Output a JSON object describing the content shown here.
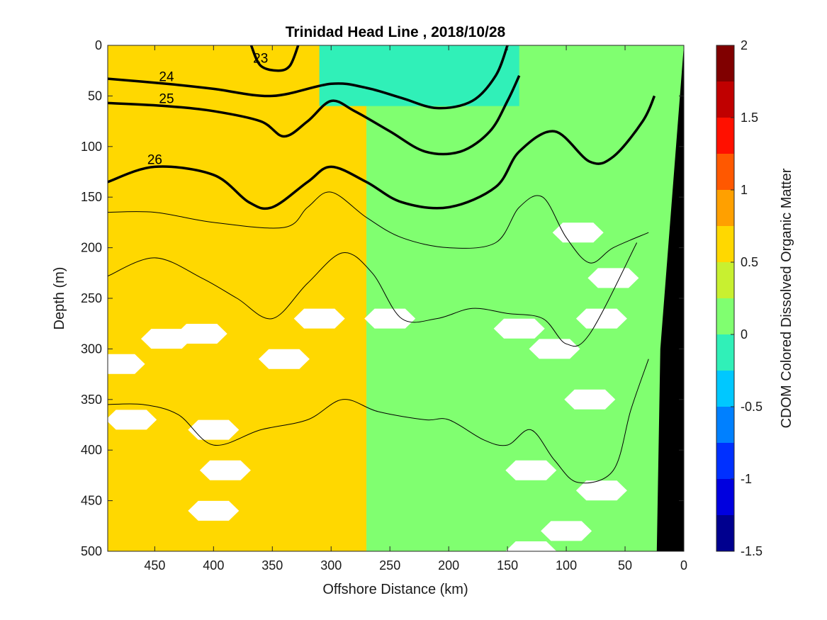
{
  "chart_data": {
    "type": "heatmap",
    "title": "Trinidad Head Line , 2018/10/28",
    "xlabel": "Offshore Distance (km)",
    "ylabel": "Depth (m)",
    "colorbar_label": "CDOM Colored Dissolved Organic Matter",
    "xlim": [
      490,
      0
    ],
    "ylim": [
      0,
      500
    ],
    "x_ticks": [
      450,
      400,
      350,
      300,
      250,
      200,
      150,
      100,
      50,
      0
    ],
    "y_ticks": [
      0,
      50,
      100,
      150,
      200,
      250,
      300,
      350,
      400,
      450,
      500
    ],
    "color_scale": {
      "min": -1.5,
      "max": 2,
      "step": 0.25,
      "ticks": [
        2,
        1.5,
        1,
        0.5,
        0,
        -0.5,
        -1,
        -1.5
      ],
      "colors": [
        "#00008f",
        "#0000df",
        "#0030ff",
        "#0080ff",
        "#00c8ff",
        "#30f0b8",
        "#80ff70",
        "#c8f030",
        "#ffd800",
        "#ffa000",
        "#ff5800",
        "#ff1000",
        "#c00000",
        "#800000"
      ]
    },
    "background_field": [
      {
        "x_range": [
          490,
          270
        ],
        "depth_range": [
          0,
          500
        ],
        "value": 0.6
      },
      {
        "x_range": [
          270,
          0
        ],
        "depth_range": [
          0,
          500
        ],
        "value": 0.15
      },
      {
        "x_range": [
          310,
          140
        ],
        "depth_range": [
          0,
          60
        ],
        "value": -0.1
      }
    ],
    "density_contours": [
      {
        "label": "23",
        "labeled": true,
        "points": [
          [
            368,
            0
          ],
          [
            360,
            20
          ],
          [
            345,
            25
          ],
          [
            335,
            20
          ],
          [
            328,
            0
          ]
        ]
      },
      {
        "label": "24",
        "labeled": true,
        "points": [
          [
            490,
            33
          ],
          [
            440,
            38
          ],
          [
            400,
            43
          ],
          [
            350,
            50
          ],
          [
            300,
            38
          ],
          [
            270,
            42
          ],
          [
            240,
            52
          ],
          [
            210,
            62
          ],
          [
            180,
            55
          ],
          [
            160,
            30
          ],
          [
            150,
            0
          ]
        ]
      },
      {
        "label": "25",
        "labeled": true,
        "points": [
          [
            490,
            57
          ],
          [
            440,
            60
          ],
          [
            400,
            65
          ],
          [
            360,
            75
          ],
          [
            340,
            90
          ],
          [
            320,
            75
          ],
          [
            300,
            55
          ],
          [
            280,
            65
          ],
          [
            250,
            85
          ],
          [
            220,
            105
          ],
          [
            190,
            105
          ],
          [
            165,
            85
          ],
          [
            150,
            55
          ],
          [
            140,
            30
          ]
        ]
      },
      {
        "label": "26",
        "labeled": true,
        "points": [
          [
            490,
            135
          ],
          [
            450,
            120
          ],
          [
            400,
            128
          ],
          [
            370,
            155
          ],
          [
            350,
            160
          ],
          [
            320,
            135
          ],
          [
            300,
            120
          ],
          [
            270,
            135
          ],
          [
            240,
            155
          ],
          [
            200,
            160
          ],
          [
            160,
            140
          ],
          [
            140,
            105
          ],
          [
            110,
            85
          ],
          [
            80,
            115
          ],
          [
            60,
            110
          ],
          [
            35,
            75
          ],
          [
            25,
            50
          ]
        ]
      },
      {
        "label": "",
        "labeled": false,
        "points": [
          [
            490,
            165
          ],
          [
            450,
            165
          ],
          [
            400,
            175
          ],
          [
            340,
            180
          ],
          [
            320,
            160
          ],
          [
            300,
            145
          ],
          [
            270,
            170
          ],
          [
            240,
            190
          ],
          [
            200,
            200
          ],
          [
            160,
            195
          ],
          [
            140,
            160
          ],
          [
            120,
            150
          ],
          [
            100,
            190
          ],
          [
            80,
            215
          ],
          [
            60,
            200
          ],
          [
            30,
            185
          ]
        ]
      },
      {
        "label": "",
        "labeled": false,
        "points": [
          [
            490,
            228
          ],
          [
            450,
            210
          ],
          [
            410,
            230
          ],
          [
            380,
            250
          ],
          [
            350,
            270
          ],
          [
            320,
            235
          ],
          [
            290,
            205
          ],
          [
            265,
            225
          ],
          [
            240,
            270
          ],
          [
            210,
            270
          ],
          [
            180,
            260
          ],
          [
            150,
            265
          ],
          [
            120,
            270
          ],
          [
            100,
            295
          ],
          [
            80,
            285
          ],
          [
            40,
            195
          ]
        ]
      },
      {
        "label": "",
        "labeled": false,
        "points": [
          [
            490,
            355
          ],
          [
            460,
            355
          ],
          [
            430,
            365
          ],
          [
            400,
            395
          ],
          [
            360,
            380
          ],
          [
            320,
            370
          ],
          [
            290,
            350
          ],
          [
            260,
            362
          ],
          [
            220,
            370
          ],
          [
            200,
            370
          ],
          [
            170,
            390
          ],
          [
            150,
            395
          ],
          [
            130,
            380
          ],
          [
            110,
            410
          ],
          [
            90,
            432
          ],
          [
            60,
            420
          ],
          [
            45,
            360
          ],
          [
            30,
            310
          ]
        ]
      }
    ],
    "blanked_regions": [
      [
        410,
        285
      ],
      [
        440,
        290
      ],
      [
        400,
        380
      ],
      [
        390,
        420
      ],
      [
        400,
        460
      ],
      [
        340,
        310
      ],
      [
        310,
        270
      ],
      [
        250,
        270
      ],
      [
        140,
        280
      ],
      [
        90,
        185
      ],
      [
        60,
        230
      ],
      [
        70,
        270
      ],
      [
        110,
        300
      ],
      [
        80,
        350
      ],
      [
        130,
        420
      ],
      [
        70,
        440
      ],
      [
        100,
        480
      ],
      [
        130,
        500
      ],
      [
        480,
        315
      ],
      [
        470,
        370
      ]
    ],
    "seafloor_polygon": [
      [
        0,
        0
      ],
      [
        0,
        500
      ],
      [
        23,
        500
      ],
      [
        20,
        300
      ],
      [
        0,
        0
      ]
    ]
  }
}
